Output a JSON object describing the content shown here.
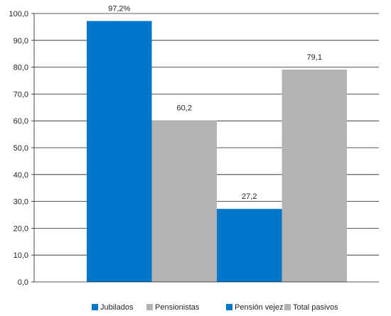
{
  "chart_data": {
    "type": "bar",
    "categories": [
      "Jubilados",
      "Pensionistas",
      "Pensión vejez",
      "Total pasivos"
    ],
    "values": [
      97.2,
      60.2,
      27.2,
      79.1
    ],
    "data_labels": [
      "97,2%",
      "60,2",
      "27,2",
      "79,1"
    ],
    "colors": [
      "#0077c8",
      "#b3b3b6",
      "#0077c8",
      "#b3b3b6"
    ],
    "title": "",
    "xlabel": "",
    "ylabel": "",
    "ylim": [
      0,
      100
    ],
    "y_ticks": [
      0,
      10,
      20,
      30,
      40,
      50,
      60,
      70,
      80,
      90,
      100
    ],
    "y_tick_labels": [
      "0,0",
      "10,0",
      "20,0",
      "30,0",
      "40,0",
      "50,0",
      "60,0",
      "70,0",
      "80,0",
      "90,0",
      "100,0"
    ],
    "grid": true,
    "legend_position": "bottom",
    "legend": [
      {
        "label": "Jubilados",
        "color": "#0077c8"
      },
      {
        "label": "Pensionistas",
        "color": "#b3b3b6"
      },
      {
        "label": "Pensión vejez",
        "color": "#0077c8"
      },
      {
        "label": "Total pasivos",
        "color": "#b3b3b6"
      }
    ]
  }
}
